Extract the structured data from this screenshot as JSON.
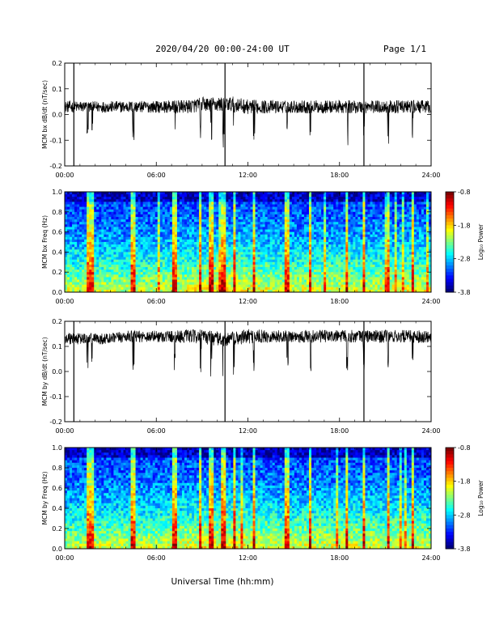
{
  "header": {
    "title": "2020/04/20  00:00-24:00 UT",
    "page": "Page 1/1"
  },
  "footer": {
    "xlabel": "Universal Time (hh:mm)"
  },
  "colorbar": {
    "label": "Log₁₀ Power",
    "ticks": [
      "-0.8",
      "-1.8",
      "-2.8",
      "-3.8"
    ],
    "range": [
      -3.8,
      -0.8
    ]
  },
  "chart_data": [
    {
      "type": "line",
      "ylabel": "MCM bx dB/dt (nT/sec)",
      "ylim": [
        -0.2,
        0.2
      ],
      "yticks": [
        "0.2",
        "0.1",
        "0.0",
        "-0.1",
        "-0.2"
      ],
      "xticks": [
        "00:00",
        "06:00",
        "12:00",
        "18:00",
        "24:00"
      ],
      "xlim": [
        0,
        24
      ],
      "series": [
        {
          "x": [
            0,
            1,
            2,
            3,
            4,
            5,
            6,
            7,
            8,
            9,
            10,
            11,
            12,
            13,
            14,
            15,
            16,
            17,
            18,
            19,
            20,
            21,
            22,
            23,
            24
          ],
          "values": [
            0.03,
            0.03,
            0.03,
            0.03,
            0.03,
            0.03,
            0.03,
            0.03,
            0.03,
            0.04,
            0.04,
            0.04,
            0.03,
            0.03,
            0.03,
            0.03,
            0.03,
            0.03,
            0.03,
            0.03,
            0.03,
            0.03,
            0.03,
            0.03,
            0.03
          ]
        }
      ]
    },
    {
      "type": "heatmap",
      "ylabel": "MCM bx Freq (Hz)",
      "ylim": [
        0.0,
        1.0
      ],
      "yticks": [
        "1.0",
        "0.8",
        "0.6",
        "0.4",
        "0.2",
        "0.0"
      ],
      "xticks": [
        "00:00",
        "06:00",
        "12:00",
        "18:00",
        "24:00"
      ],
      "xlim": [
        0,
        24
      ]
    },
    {
      "type": "line",
      "ylabel": "MCM by dB/dt (nT/sec)",
      "ylim": [
        -0.2,
        0.2
      ],
      "yticks": [
        "0.2",
        "0.1",
        "0.0",
        "-0.1",
        "-0.2"
      ],
      "xticks": [
        "00:00",
        "06:00",
        "12:00",
        "18:00",
        "24:00"
      ],
      "xlim": [
        0,
        24
      ],
      "series": [
        {
          "x": [
            0,
            1,
            2,
            3,
            4,
            5,
            6,
            7,
            8,
            9,
            10,
            11,
            12,
            13,
            14,
            15,
            16,
            17,
            18,
            19,
            20,
            21,
            22,
            23,
            24
          ],
          "values": [
            0.13,
            0.13,
            0.13,
            0.13,
            0.14,
            0.14,
            0.14,
            0.14,
            0.14,
            0.14,
            0.13,
            0.13,
            0.14,
            0.14,
            0.14,
            0.14,
            0.14,
            0.14,
            0.14,
            0.14,
            0.14,
            0.14,
            0.14,
            0.14,
            0.14
          ]
        }
      ]
    },
    {
      "type": "heatmap",
      "ylabel": "MCM by Freq (Hz)",
      "ylim": [
        0.0,
        1.0
      ],
      "yticks": [
        "1.0",
        "0.8",
        "0.6",
        "0.4",
        "0.2",
        "0.0"
      ],
      "xticks": [
        "00:00",
        "06:00",
        "12:00",
        "18:00",
        "24:00"
      ],
      "xlim": [
        0,
        24
      ]
    }
  ]
}
